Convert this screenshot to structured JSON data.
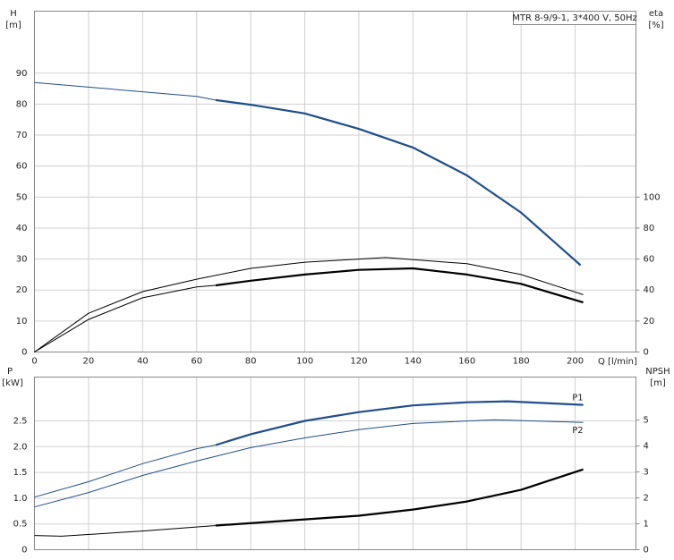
{
  "chart_data": [
    {
      "type": "line",
      "title": "MTR 8-9/9-1, 3*400 V, 50Hz",
      "xlabel": "Q [l/min]",
      "ylabel": "H",
      "yunit": "[m]",
      "y2label": "eta",
      "y2unit": "[%]",
      "xlim": [
        0,
        222.5
      ],
      "xticks": [
        0,
        20,
        40,
        60,
        80,
        100,
        120,
        140,
        160,
        180,
        200
      ],
      "ylim": [
        0,
        110
      ],
      "yticks": [
        0,
        10,
        20,
        30,
        40,
        50,
        60,
        70,
        80,
        90
      ],
      "y2lim": [
        0,
        220
      ],
      "y2ticks": [
        0,
        20,
        40,
        60,
        80,
        100
      ],
      "grid": true,
      "series": [
        {
          "color": "#1f4e8c",
          "width": 1,
          "x": [
            0,
            20,
            40,
            60,
            67
          ],
          "values": [
            87,
            85.5,
            84,
            82.5,
            81.3
          ]
        },
        {
          "color": "#1f4e8c",
          "width": 2.2,
          "x": [
            67,
            80,
            100,
            120,
            140,
            160,
            180,
            202
          ],
          "values": [
            81.3,
            79.8,
            77,
            72,
            66,
            57,
            45,
            28
          ]
        },
        {
          "color": "#000000",
          "width": 1,
          "axis": "y2",
          "x": [
            0,
            20,
            40,
            60,
            80,
            100,
            120,
            130,
            160,
            180,
            203
          ],
          "values": [
            0,
            25,
            39,
            47,
            54,
            58,
            60,
            61,
            57,
            50,
            37
          ]
        },
        {
          "color": "#000000",
          "width": 1,
          "axis": "y2",
          "x": [
            0,
            20,
            40,
            60,
            67
          ],
          "values": [
            0,
            21,
            35,
            42,
            43
          ]
        },
        {
          "color": "#000000",
          "width": 2.2,
          "axis": "y2",
          "x": [
            67,
            80,
            100,
            120,
            140,
            160,
            180,
            203
          ],
          "values": [
            43,
            46,
            50,
            53,
            54,
            50,
            44,
            32
          ]
        }
      ]
    },
    {
      "type": "line",
      "ylabel": "P",
      "yunit": "[kW]",
      "y2label": "NPSH",
      "y2unit": "[m]",
      "xlim": [
        0,
        222.5
      ],
      "ylim": [
        0,
        3.35
      ],
      "yticks": [
        0,
        {
          "value": 0.5,
          "label": "0.5"
        },
        {
          "value": 1,
          "label": "1.0"
        },
        {
          "value": 1.5,
          "label": "1.5"
        },
        {
          "value": 2,
          "label": "2.0"
        },
        {
          "value": 2.5,
          "label": "2.5"
        }
      ],
      "y2lim": [
        0,
        6.66
      ],
      "y2ticks": [
        0,
        1,
        2,
        3,
        4,
        5
      ],
      "grid": true,
      "series": [
        {
          "color": "#1f4e8c",
          "width": 1,
          "x": [
            0,
            20,
            40,
            60,
            67
          ],
          "values": [
            1.02,
            1.32,
            1.67,
            1.96,
            2.03
          ]
        },
        {
          "name": "P1",
          "color": "#1f4e8c",
          "width": 2.2,
          "x": [
            67,
            80,
            100,
            120,
            140,
            160,
            175,
            203
          ],
          "values": [
            2.03,
            2.24,
            2.5,
            2.67,
            2.8,
            2.86,
            2.88,
            2.81
          ]
        },
        {
          "name": "P2",
          "color": "#1f4e8c",
          "width": 1,
          "x": [
            0,
            20,
            40,
            60,
            80,
            100,
            120,
            140,
            170,
            203
          ],
          "values": [
            0.83,
            1.11,
            1.44,
            1.72,
            1.98,
            2.17,
            2.33,
            2.45,
            2.52,
            2.47
          ]
        },
        {
          "color": "#000000",
          "width": 1,
          "axis": "y2",
          "x": [
            0,
            10,
            40,
            67
          ],
          "values": [
            0.55,
            0.52,
            0.72,
            0.93
          ]
        },
        {
          "color": "#000000",
          "width": 2.2,
          "axis": "y2",
          "x": [
            67,
            100,
            120,
            140,
            160,
            180,
            203
          ],
          "values": [
            0.93,
            1.17,
            1.31,
            1.55,
            1.86,
            2.31,
            3.1
          ]
        }
      ]
    }
  ]
}
